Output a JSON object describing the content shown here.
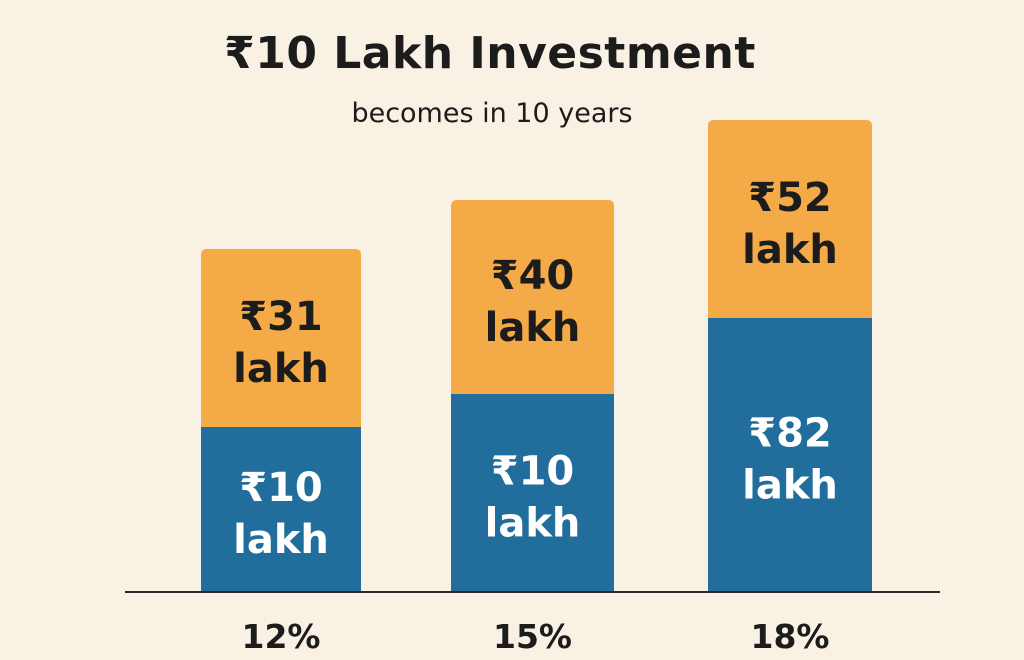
{
  "chart_data": {
    "type": "bar",
    "stacked": true,
    "title": "₹10 Lakh Investment",
    "subtitle": "becomes in 10 years",
    "categories": [
      "12%",
      "15%",
      "18%"
    ],
    "series": [
      {
        "values": [
          10,
          10,
          82
        ],
        "labels": [
          "₹10\nlakh",
          "₹10\nlakh",
          "₹82\nlakh"
        ],
        "color": "#216e9c",
        "label_color": "#ffffff"
      },
      {
        "values": [
          31,
          40,
          52
        ],
        "labels": [
          "₹31\nlakh",
          "₹40\nlakh",
          "₹52\nlakh"
        ],
        "color": "#f5aa48",
        "label_color": "#1c1c1c"
      }
    ],
    "grid": false,
    "legend": "none"
  }
}
